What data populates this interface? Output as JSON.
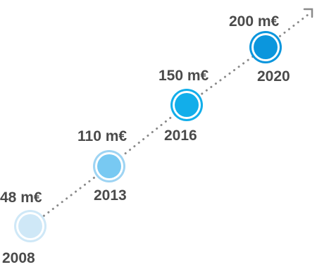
{
  "chart_data": {
    "type": "line",
    "title": "",
    "xlabel": "",
    "ylabel": "",
    "x": [
      "2008",
      "2013",
      "2016",
      "2020"
    ],
    "values": [
      48,
      110,
      150,
      200
    ],
    "value_labels": [
      "48 m€",
      "110 m€",
      "150 m€",
      "200 m€"
    ],
    "unit": "m€",
    "grid": false,
    "legend": "none",
    "trend_arrow": true,
    "colors": {
      "line": "#8a8a8a",
      "ring": [
        "#cfe8f7",
        "#9ed4f3",
        "#12aeea",
        "#0b96dd"
      ],
      "fill": [
        "#cfe8f7",
        "#78c9f2",
        "#12aeea",
        "#0b96dd"
      ],
      "text": "#4a4a4a"
    }
  }
}
